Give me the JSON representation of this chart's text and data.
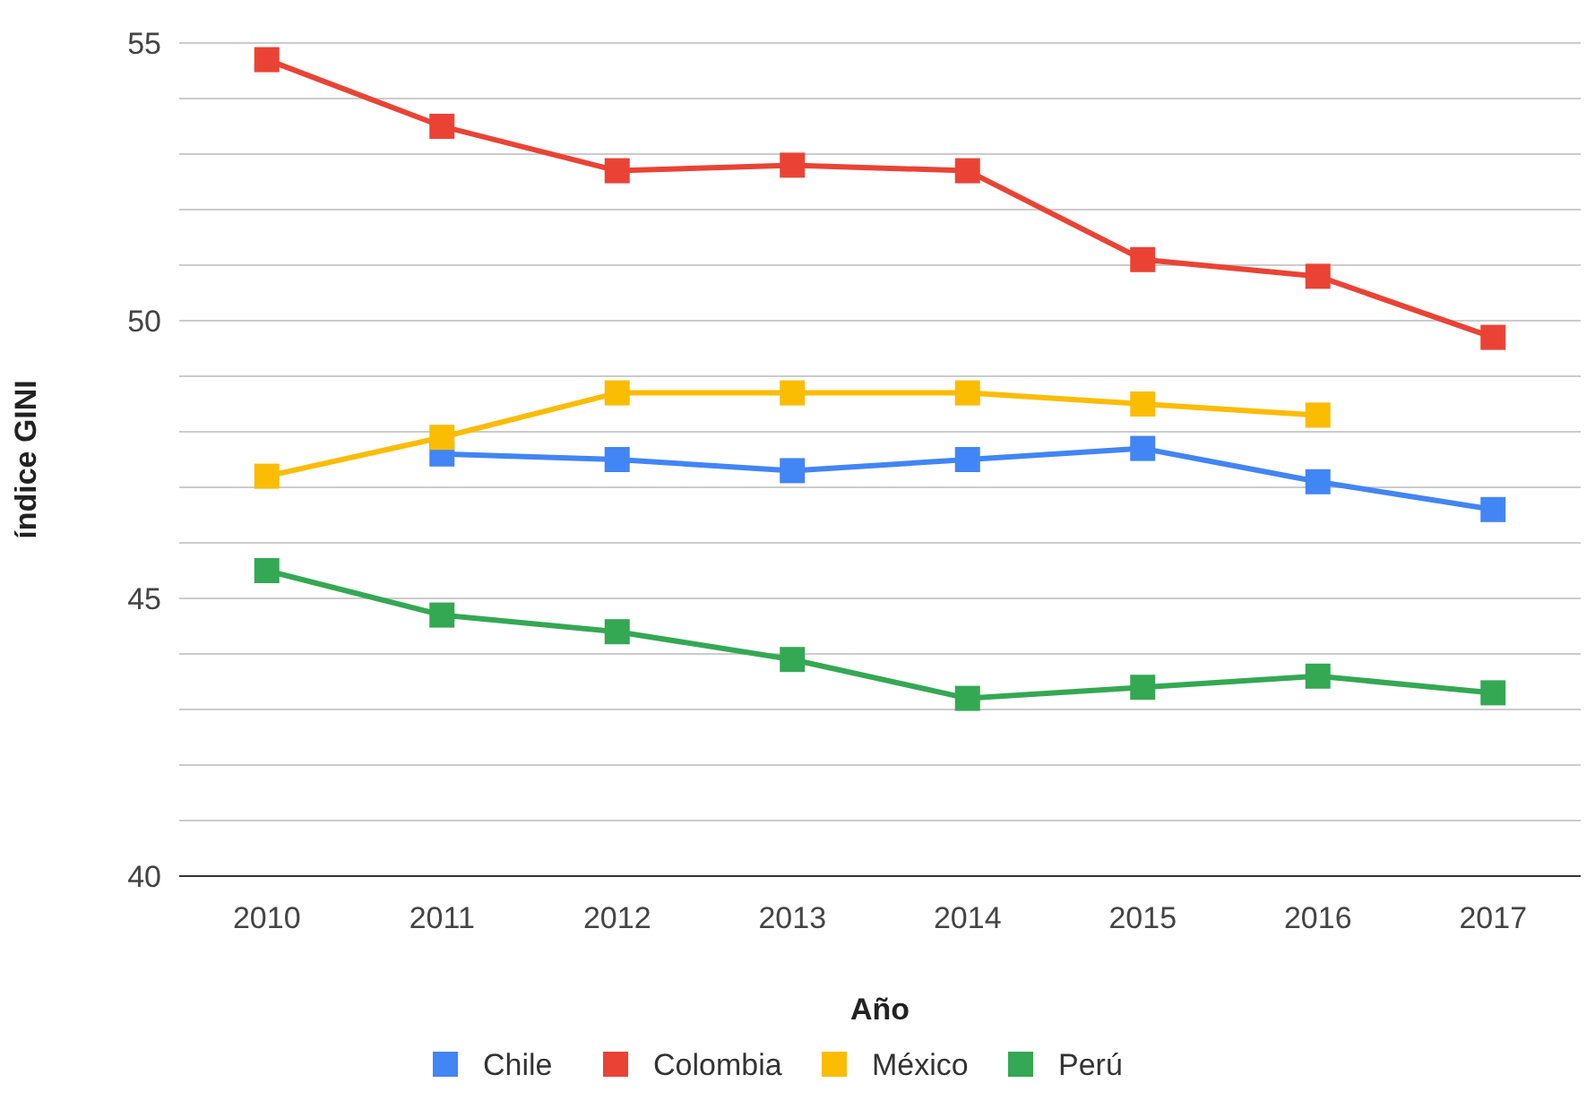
{
  "chart_data": {
    "type": "line",
    "xlabel": "Año",
    "ylabel": "índice GINI",
    "categories": [
      "2010",
      "2011",
      "2012",
      "2013",
      "2014",
      "2015",
      "2016",
      "2017"
    ],
    "series": [
      {
        "name": "Chile",
        "color": "#4285f4",
        "values": [
          null,
          47.6,
          47.5,
          47.3,
          47.5,
          47.7,
          47.1,
          46.6
        ]
      },
      {
        "name": "Colombia",
        "color": "#ea4335",
        "values": [
          54.7,
          53.5,
          52.7,
          52.8,
          52.7,
          51.1,
          50.8,
          49.7
        ]
      },
      {
        "name": "México",
        "color": "#fbbc04",
        "values": [
          47.2,
          47.9,
          48.7,
          48.7,
          48.7,
          48.5,
          48.3,
          null
        ]
      },
      {
        "name": "Perú",
        "color": "#34a853",
        "values": [
          45.5,
          44.7,
          44.4,
          43.9,
          43.2,
          43.4,
          43.6,
          43.3
        ]
      }
    ],
    "ylim": [
      40,
      55
    ],
    "yticks": [
      40,
      {
        "value": 41,
        "label": null
      },
      {
        "value": 42,
        "label": null
      },
      {
        "value": 43,
        "label": null
      },
      {
        "value": 44,
        "label": null
      },
      45,
      {
        "value": 46,
        "label": null
      },
      {
        "value": 47,
        "label": null
      },
      {
        "value": 48,
        "label": null
      },
      {
        "value": 49,
        "label": null
      },
      50,
      {
        "value": 51,
        "label": null
      },
      {
        "value": 52,
        "label": null
      },
      {
        "value": 53,
        "label": null
      },
      {
        "value": 54,
        "label": null
      },
      55
    ],
    "grid": "y",
    "legend": "bottom",
    "marker": "square",
    "line_style": "solid"
  }
}
